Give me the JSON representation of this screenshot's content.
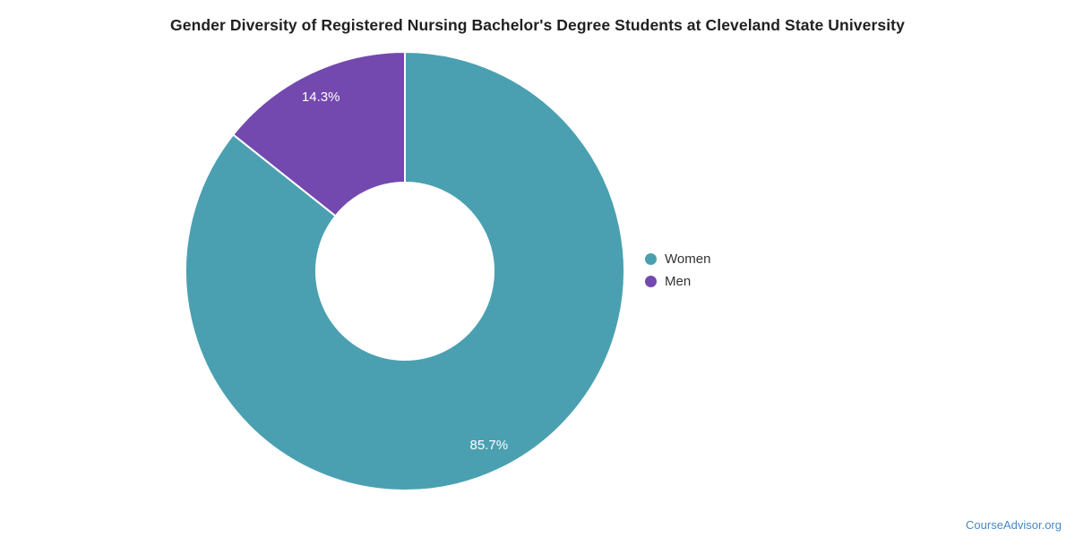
{
  "title": "Gender Diversity of Registered Nursing Bachelor's Degree Students at Cleveland State University",
  "watermark": "CourseAdvisor.org",
  "colors": {
    "women": "#4aa0b1",
    "men": "#7349af",
    "title_text": "#212121",
    "legend_text": "#333333",
    "slice_label_text": "#ffffff",
    "watermark_text": "#4a87c2",
    "slice_border": "#ffffff"
  },
  "legend": {
    "position": "right",
    "items": [
      {
        "label": "Women",
        "color": "#4aa0b1"
      },
      {
        "label": "Men",
        "color": "#7349af"
      }
    ]
  },
  "chart_data": {
    "type": "pie",
    "donut": true,
    "title": "Gender Diversity of Registered Nursing Bachelor's Degree Students at Cleveland State University",
    "categories": [
      "Women",
      "Men"
    ],
    "values": [
      85.7,
      14.3
    ],
    "data_labels": [
      "85.7%",
      "14.3%"
    ],
    "colors": [
      "#4aa0b1",
      "#7349af"
    ],
    "start_angle_deg": 0,
    "direction": "clockwise",
    "outer_radius_px": 245,
    "inner_radius_px": 99,
    "label_radius_px": 216,
    "legend_position": "right",
    "grid": false
  }
}
